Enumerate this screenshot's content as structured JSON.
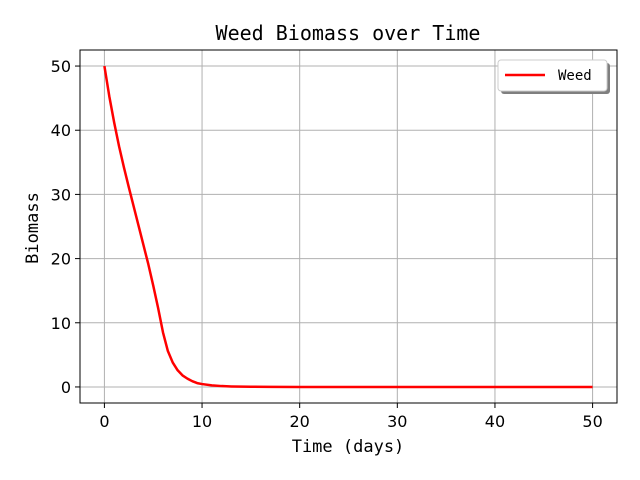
{
  "chart_data": {
    "type": "line",
    "title": "Weed Biomass over Time",
    "xlabel": "Time (days)",
    "ylabel": "Biomass",
    "xlim": [
      -2.5,
      52.5
    ],
    "ylim": [
      -2.5,
      52.5
    ],
    "xticks": [
      0,
      10,
      20,
      30,
      40,
      50
    ],
    "yticks": [
      0,
      10,
      20,
      30,
      40,
      50
    ],
    "grid": true,
    "legend_position": "top-right",
    "series": [
      {
        "name": "Weed",
        "color": "#ff0000",
        "x": [
          0,
          0.5,
          1,
          1.5,
          2,
          2.5,
          3,
          3.5,
          4,
          4.5,
          5,
          5.5,
          6,
          6.5,
          7,
          7.5,
          8,
          8.5,
          9,
          9.5,
          10,
          11,
          12,
          13,
          14,
          15,
          17,
          20,
          25,
          30,
          35,
          40,
          45,
          50
        ],
        "y": [
          50,
          45.3,
          41.2,
          37.5,
          34.2,
          31.1,
          28.1,
          25.1,
          22.1,
          19.1,
          15.8,
          12.3,
          8.5,
          5.6,
          3.8,
          2.6,
          1.8,
          1.3,
          0.9,
          0.6,
          0.45,
          0.25,
          0.14,
          0.08,
          0.05,
          0.03,
          0.01,
          0,
          0,
          0,
          0,
          0,
          0,
          0
        ]
      }
    ]
  }
}
